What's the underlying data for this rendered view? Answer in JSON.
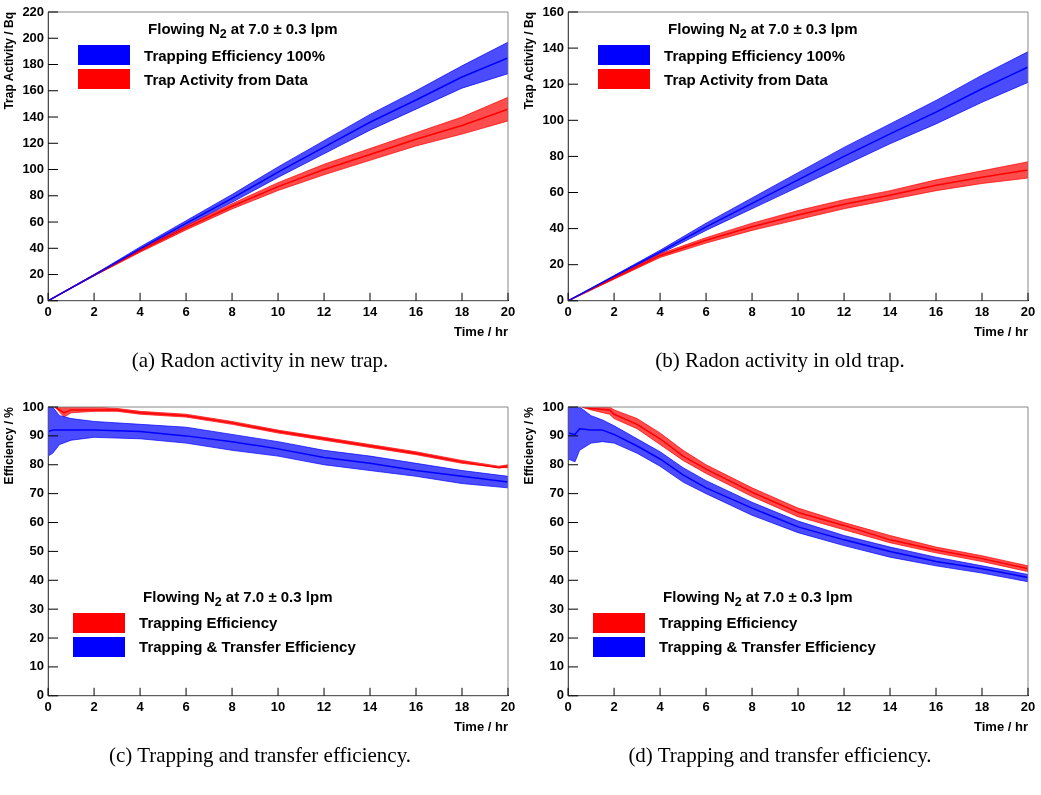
{
  "chart_data": [
    {
      "type": "line",
      "legend_title": "Flowing N$_{2}$ at 7.0 ± 0.3 lpm",
      "xlabel": "Time / hr",
      "ylabel": "Trap Activity / Bq",
      "x": [
        0,
        2,
        4,
        6,
        8,
        10,
        12,
        14,
        16,
        18,
        20
      ],
      "xlim": [
        0,
        20
      ],
      "xticks": [
        0,
        2,
        4,
        6,
        8,
        10,
        12,
        14,
        16,
        18,
        20
      ],
      "ylim": [
        0,
        220
      ],
      "yticks": [
        0,
        20,
        40,
        60,
        80,
        100,
        120,
        140,
        160,
        180,
        200,
        220
      ],
      "grid": false,
      "legend": "top left",
      "annotations": [
        "(a) Radon activity in new trap."
      ],
      "series": [
        {
          "name": "Trapping Efficiency 100%",
          "color": "#0000ff",
          "values": [
            0,
            19.5,
            39.5,
            59,
            78,
            98,
            117,
            136,
            153,
            170.5,
            185
          ],
          "lower": [
            0,
            19,
            38,
            57,
            75,
            94,
            112,
            130,
            146,
            162,
            173
          ],
          "upper": [
            0,
            20,
            41,
            61,
            81,
            102,
            122,
            142,
            160,
            179,
            197
          ]
        },
        {
          "name": "Trap Activity from Data",
          "color": "#ff0000",
          "values": [
            0,
            19.5,
            38,
            55.5,
            72,
            87,
            100,
            111.5,
            123,
            133.5,
            146
          ],
          "lower": [
            0,
            19,
            37,
            54,
            70,
            84,
            96,
            107,
            118,
            127,
            137
          ],
          "upper": [
            0,
            20,
            39,
            57,
            74,
            90,
            104,
            116,
            128,
            140,
            155
          ]
        }
      ]
    },
    {
      "type": "line",
      "legend_title": "Flowing N$_{2}$ at 7.0 ± 0.3 lpm",
      "xlabel": "Time / hr",
      "ylabel": "Trap Activity / Bq",
      "x": [
        0,
        2,
        4,
        6,
        8,
        10,
        12,
        14,
        16,
        18,
        20
      ],
      "xlim": [
        0,
        20
      ],
      "xticks": [
        0,
        2,
        4,
        6,
        8,
        10,
        12,
        14,
        16,
        18,
        20
      ],
      "ylim": [
        0,
        160
      ],
      "yticks": [
        0,
        20,
        40,
        60,
        80,
        100,
        120,
        140,
        160
      ],
      "grid": false,
      "legend": "top left",
      "annotations": [
        "(b) Radon activity in old trap."
      ],
      "series": [
        {
          "name": "Trapping Efficiency 100%",
          "color": "#0000ff",
          "values": [
            0,
            13.5,
            27,
            41,
            54,
            67,
            80,
            92.5,
            104.5,
            117.5,
            129.5
          ],
          "lower": [
            0,
            13,
            26,
            39,
            51,
            63,
            75,
            87,
            98,
            110,
            121
          ],
          "upper": [
            0,
            14,
            28,
            43,
            57,
            71,
            85,
            98,
            111,
            125,
            138
          ]
        },
        {
          "name": "Trap Activity from Data",
          "color": "#ff0000",
          "values": [
            0,
            12.5,
            25,
            33.5,
            41,
            47.5,
            53.5,
            58.5,
            64,
            68.5,
            72.5
          ],
          "lower": [
            0,
            12,
            24,
            32,
            39,
            45,
            51,
            56,
            61,
            65,
            68
          ],
          "upper": [
            0,
            13,
            26,
            35,
            43,
            50,
            56,
            61,
            67,
            72,
            77
          ]
        }
      ]
    },
    {
      "type": "line",
      "legend_title": "Flowing N$_{2}$ at 7.0 ± 0.3 lpm",
      "xlabel": "Time / hr",
      "ylabel": "Efficiency / %",
      "xlim": [
        0,
        20
      ],
      "xticks": [
        0,
        2,
        4,
        6,
        8,
        10,
        12,
        14,
        16,
        18,
        20
      ],
      "ylim": [
        0,
        100
      ],
      "yticks": [
        0,
        10,
        20,
        30,
        40,
        50,
        60,
        70,
        80,
        90,
        100
      ],
      "grid": false,
      "legend": "bottom",
      "annotations": [
        "(c) Trapping and transfer efficiency."
      ],
      "series": [
        {
          "name": "Trapping Efficiency",
          "color": "#ff0000",
          "x": [
            0.3,
            0.7,
            1,
            2,
            3,
            4,
            6,
            8,
            10,
            12,
            14,
            16,
            18,
            19.6,
            20
          ],
          "values": [
            100,
            98,
            99,
            99,
            99,
            98,
            97,
            94.5,
            91.5,
            89,
            86.5,
            84,
            81,
            79,
            79.5
          ],
          "lower": [
            100,
            96.5,
            98,
            98.5,
            98.5,
            97.5,
            96.5,
            94,
            91,
            88.5,
            86,
            83.5,
            80.5,
            79,
            79
          ],
          "upper": [
            100,
            100,
            100,
            100,
            99.5,
            98.5,
            97.5,
            95,
            92,
            89.5,
            87,
            84.5,
            81.5,
            79.5,
            80
          ]
        },
        {
          "name": "Trapping & Transfer Efficiency",
          "color": "#0000ff",
          "x": [
            0,
            0.2,
            0.5,
            1,
            2,
            4,
            6,
            8,
            10,
            12,
            14,
            16,
            18,
            20
          ],
          "values": [
            91.5,
            92,
            92,
            92,
            92,
            91.5,
            90,
            88,
            85.5,
            82.5,
            80.5,
            78,
            76,
            74
          ],
          "lower": [
            83,
            84,
            87,
            88.5,
            89.5,
            89,
            87.5,
            85,
            83,
            80,
            78,
            76,
            73.5,
            72
          ],
          "upper": [
            100,
            100,
            97,
            96,
            95,
            94,
            93,
            90.5,
            88,
            85,
            83,
            80.5,
            78,
            76
          ]
        }
      ]
    },
    {
      "type": "line",
      "legend_title": "Flowing N$_{2}$ at 7.0 ± 0.3 lpm",
      "xlabel": "Time / hr",
      "ylabel": "Efficiency / %",
      "xlim": [
        0,
        20
      ],
      "xticks": [
        0,
        2,
        4,
        6,
        8,
        10,
        12,
        14,
        16,
        18,
        20
      ],
      "ylim": [
        0,
        100
      ],
      "yticks": [
        0,
        10,
        20,
        30,
        40,
        50,
        60,
        70,
        80,
        90,
        100
      ],
      "grid": false,
      "legend": "bottom",
      "annotations": [
        "(d) Trapping and transfer efficiency."
      ],
      "series": [
        {
          "name": "Trapping Efficiency",
          "color": "#ff0000",
          "x": [
            0.6,
            1,
            1.8,
            2,
            3,
            4,
            5,
            6,
            8,
            10,
            12,
            14,
            16,
            18,
            20
          ],
          "values": [
            100,
            99.5,
            99,
            97.5,
            94,
            89,
            83,
            78.5,
            70.5,
            63.5,
            59,
            54,
            50.5,
            47.5,
            44
          ],
          "lower": [
            100,
            99,
            97.5,
            96,
            92.5,
            87,
            81.5,
            77,
            69,
            62,
            57.5,
            53,
            49.5,
            46.5,
            43
          ],
          "upper": [
            100,
            100,
            100,
            99,
            96,
            91,
            85,
            80,
            72,
            65,
            60,
            55.5,
            51.5,
            48.5,
            45
          ]
        },
        {
          "name": "Trapping & Transfer Efficiency",
          "color": "#0000ff",
          "x": [
            0,
            0.3,
            0.5,
            1,
            1.5,
            2,
            3,
            4,
            5,
            6,
            8,
            10,
            12,
            14,
            16,
            18,
            20
          ],
          "values": [
            91,
            90.5,
            92.5,
            92,
            92,
            90.5,
            86.5,
            82,
            76.5,
            72,
            65,
            58.5,
            54,
            50,
            46.5,
            44,
            41
          ],
          "lower": [
            82,
            81,
            85,
            87.5,
            88,
            87.5,
            84,
            79.5,
            74,
            70,
            62.5,
            56.5,
            52,
            48,
            45,
            42.5,
            39.5
          ],
          "upper": [
            100,
            100,
            100,
            97,
            95.5,
            93.5,
            89,
            84.5,
            79,
            74.5,
            67,
            60.5,
            55.5,
            51.5,
            48,
            45,
            42
          ]
        }
      ]
    }
  ]
}
